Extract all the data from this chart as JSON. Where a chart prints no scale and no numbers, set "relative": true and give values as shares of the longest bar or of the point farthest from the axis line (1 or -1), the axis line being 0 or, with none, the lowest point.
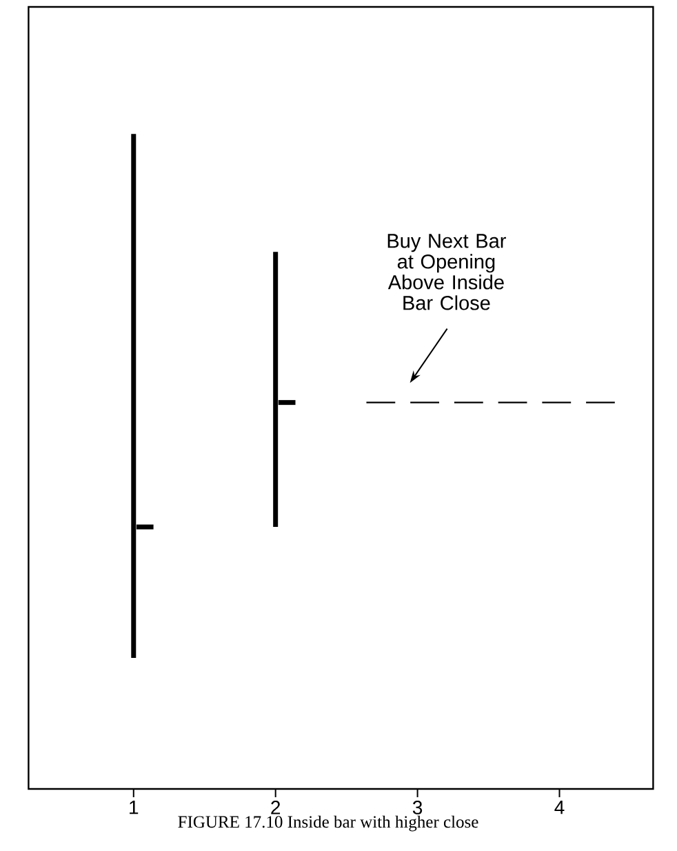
{
  "chart_data": {
    "type": "line",
    "relative": true,
    "xlim": [
      0.26,
      4.66
    ],
    "xticks": [
      1,
      2,
      3,
      4
    ],
    "series": [
      {
        "x": [
          1,
          1
        ],
        "values": [
          0.2,
          1
        ],
        "color": "#000000"
      },
      {
        "x": [
          1.02,
          1.14
        ],
        "values": [
          0.4,
          0.4
        ],
        "color": "#000000"
      },
      {
        "x": [
          2,
          2
        ],
        "values": [
          0.4,
          0.82
        ],
        "color": "#000000"
      },
      {
        "x": [
          2.02,
          2.14
        ],
        "values": [
          0.59,
          0.59
        ],
        "color": "#000000"
      },
      {
        "x": [
          2.64,
          4.39
        ],
        "values": [
          0.59,
          0.59
        ],
        "color": "#000000",
        "line_style": "dashed"
      }
    ],
    "annotations": [
      "Buy Next Bar at Opening Above Inside Bar Close",
      "FIGURE 17.10 Inside bar with higher close"
    ]
  }
}
